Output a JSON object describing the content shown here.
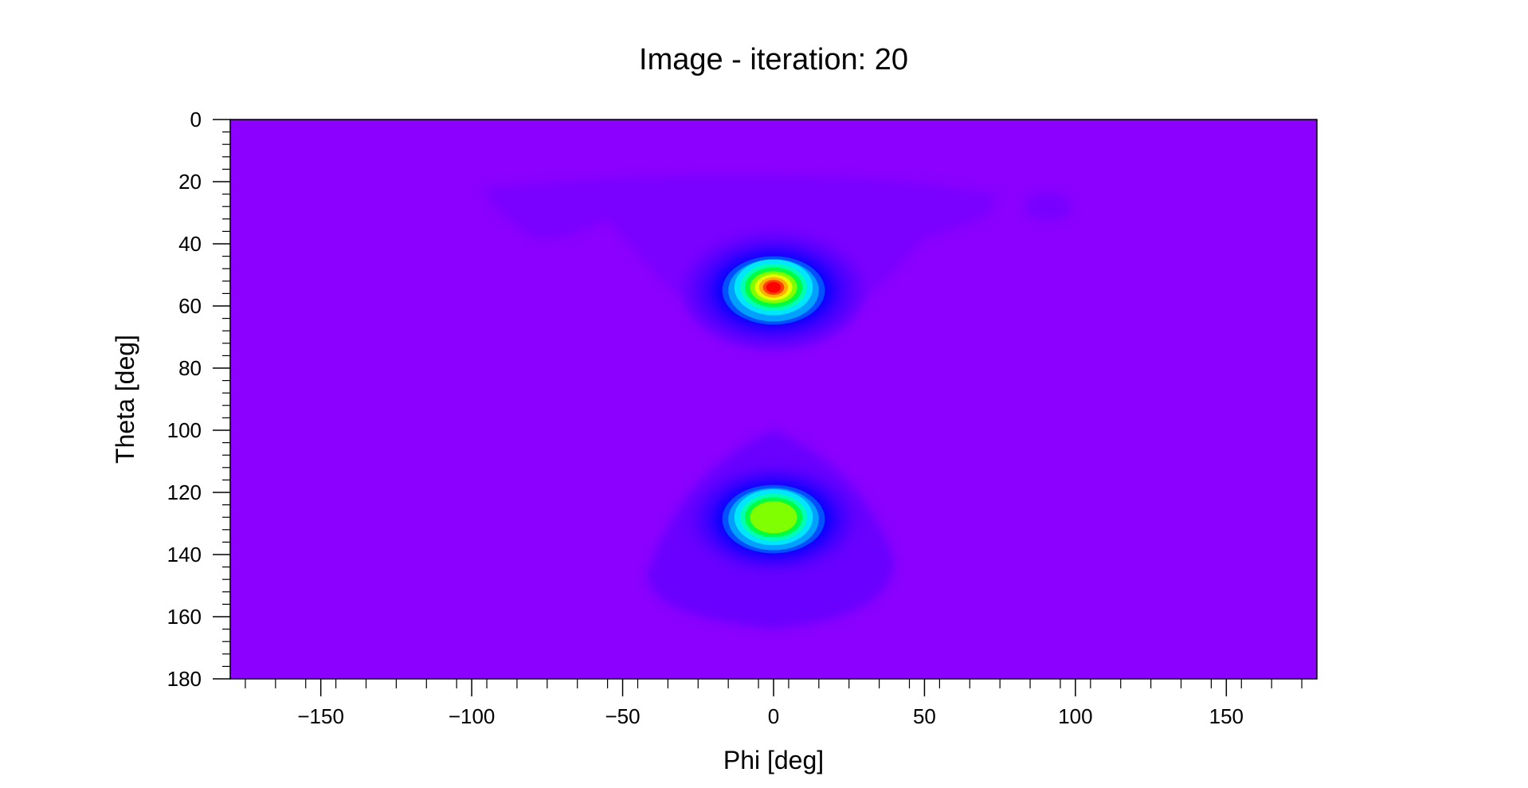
{
  "chart_data": {
    "type": "heatmap",
    "title": "Image - iteration: 20",
    "xlabel": "Phi [deg]",
    "ylabel": "Theta [deg]",
    "xlim": [
      -180,
      180
    ],
    "ylim": [
      0,
      180
    ],
    "y_inverted": true,
    "x_ticks": [
      -150,
      -100,
      -50,
      0,
      50,
      100,
      150
    ],
    "x_tick_labels": [
      "−150",
      "−100",
      "−50",
      "0",
      "50",
      "100",
      "150"
    ],
    "y_ticks": [
      0,
      20,
      40,
      60,
      80,
      100,
      120,
      140,
      160,
      180
    ],
    "y_tick_labels": [
      "0",
      "20",
      "40",
      "60",
      "80",
      "100",
      "120",
      "140",
      "160",
      "180"
    ],
    "grid": false,
    "colormap": "rainbow",
    "background_color": "#8b00ff",
    "peaks": [
      {
        "phi": 0,
        "theta": 54,
        "relative_intensity": 1.0
      },
      {
        "phi": 0,
        "theta": 128,
        "relative_intensity": 0.8
      }
    ]
  }
}
